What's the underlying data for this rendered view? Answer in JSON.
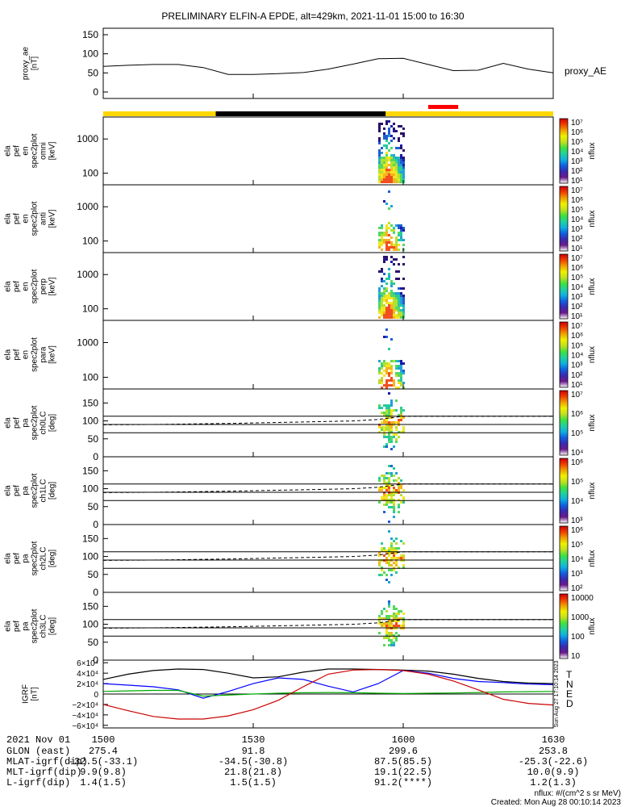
{
  "title": "PRELIMINARY ELFIN-A EPDE, alt=429km, 2021-11-01 15:00 to 16:30",
  "colors": {
    "yellow": "#ffd700",
    "black": "#000000",
    "red": "#ff0000",
    "grf_total": "#000000",
    "grf_n": "#0000ff",
    "grf_e": "#00aa00",
    "grf_d": "#cc0000"
  },
  "chart_data": [
    {
      "type": "line",
      "name": "proxy_ae",
      "ylabel_lines": [
        "proxy_ae",
        "[nT]"
      ],
      "legend": "proxy_AE",
      "ylim": [
        0,
        150
      ],
      "yticks": [
        "0",
        "50",
        "100",
        "150"
      ],
      "x_minutes": [
        0,
        5,
        10,
        15,
        20,
        25,
        30,
        35,
        40,
        45,
        50,
        55,
        60,
        65,
        70,
        75,
        80,
        85,
        90
      ],
      "values": [
        67,
        70,
        72,
        72,
        64,
        46,
        46,
        48,
        51,
        60,
        73,
        87,
        88,
        72,
        56,
        57,
        75,
        60,
        50
      ]
    },
    {
      "type": "heatmap",
      "name": "ela_pef_en_spec2plot_omni",
      "ylabel_lines": [
        "ela",
        "pef",
        "en",
        "spec2plot",
        "omni",
        "[keV]"
      ],
      "yticks": [
        "100",
        "1000"
      ],
      "colorbar_ticks": [
        "10¹",
        "10²",
        "10³",
        "10⁴",
        "10⁵",
        "10⁶",
        "10⁷"
      ],
      "colorbar_label": "nflux",
      "active_time_range_min": [
        55,
        60
      ]
    },
    {
      "type": "heatmap",
      "name": "ela_pef_en_spec2plot_anti",
      "ylabel_lines": [
        "ela",
        "pef",
        "en",
        "spec2plot",
        "anti",
        "[keV]"
      ],
      "yticks": [
        "100",
        "1000"
      ],
      "colorbar_ticks": [
        "10¹",
        "10²",
        "10³",
        "10⁴",
        "10⁵",
        "10⁶",
        "10⁷"
      ],
      "colorbar_label": "nflux",
      "active_time_range_min": [
        55,
        60
      ]
    },
    {
      "type": "heatmap",
      "name": "ela_pef_en_spec2plot_perp",
      "ylabel_lines": [
        "ela",
        "pef",
        "en",
        "spec2plot",
        "perp",
        "[keV]"
      ],
      "yticks": [
        "100",
        "1000"
      ],
      "colorbar_ticks": [
        "10¹",
        "10²",
        "10³",
        "10⁴",
        "10⁵",
        "10⁶",
        "10⁷"
      ],
      "colorbar_label": "nflux",
      "active_time_range_min": [
        55,
        60
      ]
    },
    {
      "type": "heatmap",
      "name": "ela_pef_en_spec2plot_para",
      "ylabel_lines": [
        "ela",
        "pef",
        "en",
        "spec2plot",
        "para",
        "[keV]"
      ],
      "yticks": [
        "100",
        "1000"
      ],
      "colorbar_ticks": [
        "10¹",
        "10²",
        "10³",
        "10⁴",
        "10⁵",
        "10⁶",
        "10⁷"
      ],
      "colorbar_label": "nflux",
      "active_time_range_min": [
        55,
        60
      ]
    },
    {
      "type": "heatmap",
      "name": "ela_pef_pa_spec2plot_ch0LC",
      "ylabel_lines": [
        "ela",
        "pef",
        "pa",
        "spec2plot",
        "ch0LC",
        "[deg]"
      ],
      "ylim": [
        0,
        180
      ],
      "yticks": [
        "0",
        "50",
        "100",
        "150"
      ],
      "colorbar_ticks": [
        "10⁴",
        "10⁵",
        "10⁶",
        "10⁷"
      ],
      "colorbar_label": "nflux",
      "horizontal_lines_deg": [
        67,
        90,
        113
      ],
      "dashed_x_min": [
        0,
        10,
        25,
        40,
        50,
        55,
        60,
        70,
        90
      ],
      "dashed_deg": [
        89,
        90,
        93,
        97,
        100,
        104,
        113,
        113,
        113
      ]
    },
    {
      "type": "heatmap",
      "name": "ela_pef_pa_spec2plot_ch1LC",
      "ylabel_lines": [
        "ela",
        "pef",
        "pa",
        "spec2plot",
        "ch1LC",
        "[deg]"
      ],
      "ylim": [
        0,
        180
      ],
      "yticks": [
        "0",
        "50",
        "100",
        "150"
      ],
      "colorbar_ticks": [
        "10³",
        "10⁴",
        "10⁵",
        "10⁶"
      ],
      "colorbar_label": "nflux",
      "horizontal_lines_deg": [
        67,
        90,
        113
      ],
      "dashed_x_min": [
        0,
        10,
        25,
        40,
        50,
        55,
        60,
        70,
        90
      ],
      "dashed_deg": [
        89,
        90,
        93,
        97,
        100,
        104,
        113,
        113,
        113
      ]
    },
    {
      "type": "heatmap",
      "name": "ela_pef_pa_spec2plot_ch2LC",
      "ylabel_lines": [
        "ela",
        "pef",
        "pa",
        "spec2plot",
        "ch2LC",
        "[deg]"
      ],
      "ylim": [
        0,
        180
      ],
      "yticks": [
        "0",
        "50",
        "100",
        "150"
      ],
      "colorbar_ticks": [
        "10²",
        "10³",
        "10⁴",
        "10⁵",
        "10⁶"
      ],
      "colorbar_label": "nflux",
      "horizontal_lines_deg": [
        67,
        90,
        113
      ],
      "dashed_x_min": [
        0,
        10,
        25,
        40,
        50,
        55,
        60,
        70,
        90
      ],
      "dashed_deg": [
        89,
        90,
        93,
        97,
        100,
        104,
        113,
        113,
        113
      ]
    },
    {
      "type": "heatmap",
      "name": "ela_pef_pa_spec2plot_ch3LC",
      "ylabel_lines": [
        "ela",
        "pef",
        "pa",
        "spec2plot",
        "ch3LC",
        "[deg]"
      ],
      "ylim": [
        0,
        180
      ],
      "yticks": [
        "0",
        "50",
        "100",
        "150"
      ],
      "colorbar_ticks": [
        "10",
        "100",
        "1000",
        "10000"
      ],
      "colorbar_label": "nflux",
      "horizontal_lines_deg": [
        67,
        90,
        113
      ],
      "dashed_x_min": [
        0,
        10,
        25,
        40,
        50,
        55,
        60,
        70,
        90
      ],
      "dashed_deg": [
        89,
        90,
        93,
        97,
        100,
        104,
        113,
        113,
        113
      ]
    },
    {
      "type": "line",
      "name": "IGRF",
      "ylabel_lines": [
        "IGRF",
        "[nT]"
      ],
      "ylim": [
        -65000,
        65000
      ],
      "yticks": [
        "−6×10⁴",
        "−4×10⁴",
        "−2×10⁴",
        "0",
        "2×10⁴",
        "4×10⁴",
        "6×10⁴"
      ],
      "ytick_values": [
        -60000,
        -40000,
        -20000,
        0,
        20000,
        40000,
        60000
      ],
      "x_minutes": [
        0,
        5,
        10,
        15,
        20,
        25,
        30,
        35,
        40,
        45,
        50,
        55,
        60,
        65,
        70,
        75,
        80,
        85,
        90
      ],
      "series": [
        {
          "name": "T",
          "color": "#000000",
          "values": [
            28000,
            38000,
            45000,
            48000,
            47000,
            40000,
            31000,
            33000,
            42000,
            48000,
            48000,
            47000,
            46000,
            44000,
            38000,
            30000,
            24000,
            21000,
            20000
          ]
        },
        {
          "name": "N",
          "color": "#0000ff",
          "values": [
            20000,
            17000,
            14000,
            8000,
            -8000,
            5000,
            20000,
            31000,
            28000,
            15000,
            4000,
            20000,
            45000,
            40000,
            30000,
            24000,
            22000,
            19000,
            18000
          ]
        },
        {
          "name": "E",
          "color": "#00aa00",
          "values": [
            5000,
            6000,
            7000,
            7000,
            -4000,
            -2000,
            0,
            1500,
            2500,
            3000,
            2500,
            1500,
            1000,
            1500,
            2000,
            3000,
            4000,
            4500,
            5000
          ]
        },
        {
          "name": "D",
          "color": "#cc0000",
          "values": [
            -20000,
            -32000,
            -43000,
            -48000,
            -48000,
            -42000,
            -30000,
            -12000,
            14000,
            38000,
            46000,
            47000,
            45000,
            38000,
            25000,
            8000,
            -10000,
            -18000,
            -21000
          ]
        }
      ]
    }
  ],
  "xaxis": {
    "date_label": "2021 Nov 01",
    "ticks": [
      "1500",
      "1530",
      "1600",
      "1630"
    ],
    "rows": [
      {
        "label": "GLON (east)",
        "values": [
          "275.4",
          "91.8",
          "299.6",
          "253.8"
        ]
      },
      {
        "label": "MLAT-igrf(dip)",
        "values": [
          "-32.5(-33.1)",
          "-34.5(-30.8)",
          "87.5(85.5)",
          "-25.3(-22.6)"
        ]
      },
      {
        "label": "MLT-igrf(dip)",
        "values": [
          "9.9(9.8)",
          "21.8(21.8)",
          "19.1(22.5)",
          "10.0(9.9)"
        ]
      },
      {
        "label": "L-igrf(dip)",
        "values": [
          "1.4(1.5)",
          "1.5(1.5)",
          "91.2(****)",
          "1.2(1.3)"
        ]
      }
    ]
  },
  "footer": {
    "units": "nflux: #/(cm^2 s sr MeV)",
    "created": "Created: Mon Aug 28 00:10:14 2023",
    "vertical_stamp": "Sun Aug 27 17:10:14 2023"
  }
}
